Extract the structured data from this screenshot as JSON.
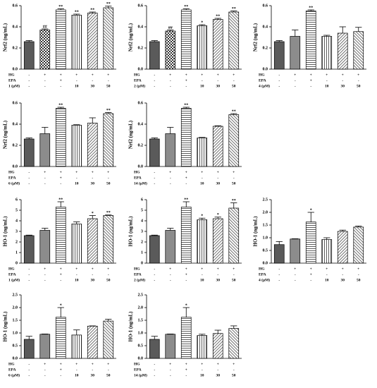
{
  "chart_data": [
    {
      "type": "bar",
      "ylabel": "Nrf2 (ng/mL)",
      "ylim": [
        0,
        0.6
      ],
      "yticks": [
        {
          "value": 0,
          "label": "0.0"
        },
        0.2,
        0.4,
        0.6
      ],
      "values": [
        0.26,
        0.37,
        0.56,
        0.51,
        0.53,
        0.58
      ],
      "errors": [
        0.01,
        0.01,
        0.01,
        0.01,
        0.01,
        0.015
      ],
      "annotations": [
        null,
        "##",
        "**",
        "**",
        "**",
        "**"
      ],
      "fills": [
        "#5a5a5a",
        "check",
        "hlines",
        "vlines",
        "diag",
        "diag2"
      ],
      "rows": [
        {
          "label": "HG",
          "cells": [
            "-",
            "+",
            "+",
            "+",
            "+",
            "+"
          ]
        },
        {
          "label": "EPA",
          "cells": [
            "-",
            "-",
            "+",
            "-",
            "-",
            "-"
          ]
        },
        {
          "label": "1 (μM)",
          "cells": [
            "-",
            "-",
            "-",
            "10",
            "30",
            "50"
          ]
        }
      ]
    },
    {
      "type": "bar",
      "ylabel": "Nrf2 (ng/mL)",
      "ylim": [
        0,
        0.6
      ],
      "yticks": [
        {
          "value": 0,
          "label": "0.0"
        },
        0.2,
        0.4,
        0.6
      ],
      "values": [
        0.26,
        0.36,
        0.56,
        0.41,
        0.47,
        0.54
      ],
      "errors": [
        0.01,
        0.01,
        0.01,
        0.01,
        0.01,
        0.01
      ],
      "annotations": [
        null,
        "##",
        "**",
        "*",
        "**",
        "**"
      ],
      "fills": [
        "#5a5a5a",
        "check",
        "hlines",
        "vlines",
        "diag",
        "diag2"
      ],
      "rows": [
        {
          "label": "HG",
          "cells": [
            "-",
            "+",
            "+",
            "+",
            "+",
            "+"
          ]
        },
        {
          "label": "EPA",
          "cells": [
            "-",
            "-",
            "+",
            "-",
            "-",
            "-"
          ]
        },
        {
          "label": "2 (μM)",
          "cells": [
            "-",
            "-",
            "-",
            "10",
            "30",
            "50"
          ]
        }
      ]
    },
    {
      "type": "bar",
      "ylabel": "Nrf2 (ng/mL)",
      "ylim": [
        0,
        0.6
      ],
      "yticks": [
        {
          "value": 0,
          "label": "0.0"
        },
        0.2,
        0.4,
        0.6
      ],
      "values": [
        0.26,
        0.31,
        0.55,
        0.31,
        0.34,
        0.355
      ],
      "errors": [
        0.01,
        0.06,
        0.01,
        0.01,
        0.06,
        0.04
      ],
      "annotations": [
        null,
        null,
        "**",
        null,
        null,
        null
      ],
      "fills": [
        "#5a5a5a",
        "#8c8c8c",
        "hlines",
        "vlines",
        "diag",
        "diag2"
      ],
      "rows": [
        {
          "label": "HG",
          "cells": [
            "-",
            "+",
            "+",
            "+",
            "+",
            "+"
          ]
        },
        {
          "label": "EPA",
          "cells": [
            "-",
            "-",
            "+",
            "-",
            "-",
            "-"
          ]
        },
        {
          "label": "4 (μM)",
          "cells": [
            "-",
            "-",
            "-",
            "10",
            "30",
            "50"
          ]
        }
      ]
    },
    {
      "type": "bar",
      "ylabel": "Nrf2 (ng/mL)",
      "ylim": [
        0,
        0.6
      ],
      "yticks": [
        {
          "value": 0,
          "label": "0.0"
        },
        0.2,
        0.4,
        0.6
      ],
      "values": [
        0.26,
        0.31,
        0.55,
        0.39,
        0.41,
        0.5
      ],
      "errors": [
        0.01,
        0.06,
        0.01,
        0.005,
        0.05,
        0.01
      ],
      "annotations": [
        null,
        null,
        "**",
        null,
        null,
        "**"
      ],
      "fills": [
        "#5a5a5a",
        "#8c8c8c",
        "hlines",
        "vlines",
        "diag",
        "diag2"
      ],
      "rows": [
        {
          "label": "HG",
          "cells": [
            "-",
            "+",
            "+",
            "+",
            "+",
            "+"
          ]
        },
        {
          "label": "EPA",
          "cells": [
            "-",
            "-",
            "+",
            "-",
            "-",
            "-"
          ]
        },
        {
          "label": "6 (μM)",
          "cells": [
            "-",
            "-",
            "-",
            "10",
            "30",
            "50"
          ]
        }
      ]
    },
    {
      "type": "bar",
      "ylabel": "Nrf2 (ng/mL)",
      "ylim": [
        0,
        0.6
      ],
      "yticks": [
        {
          "value": 0,
          "label": "0.0"
        },
        0.2,
        0.4,
        0.6
      ],
      "values": [
        0.26,
        0.31,
        0.55,
        0.27,
        0.38,
        0.49
      ],
      "errors": [
        0.01,
        0.06,
        0.01,
        0.005,
        0.005,
        0.01
      ],
      "annotations": [
        null,
        null,
        "**",
        null,
        null,
        "**"
      ],
      "fills": [
        "#5a5a5a",
        "#8c8c8c",
        "hlines",
        "vlines",
        "diag",
        "diag2"
      ],
      "rows": [
        {
          "label": "HG",
          "cells": [
            "-",
            "+",
            "+",
            "+",
            "+",
            "+"
          ]
        },
        {
          "label": "EPA",
          "cells": [
            "-",
            "-",
            "+",
            "-",
            "-",
            "-"
          ]
        },
        {
          "label": "14 (μM)",
          "cells": [
            "-",
            "-",
            "-",
            "10",
            "30",
            "50"
          ]
        }
      ]
    },
    {
      "type": "bar",
      "ylabel": "HO-1 (ng/mL)",
      "ylim": [
        0,
        6
      ],
      "yticks": [
        0,
        1,
        2,
        3,
        4,
        5,
        6
      ],
      "values": [
        2.6,
        3.1,
        5.3,
        3.7,
        4.2,
        4.5
      ],
      "errors": [
        0.05,
        0.2,
        0.5,
        0.2,
        0.3,
        0.05
      ],
      "annotations": [
        null,
        null,
        "**",
        null,
        "*",
        "**"
      ],
      "fills": [
        "#5a5a5a",
        "#8c8c8c",
        "hlines",
        "vlines",
        "diag",
        "diag2"
      ],
      "rows": [
        {
          "label": "HG",
          "cells": [
            "-",
            "+",
            "+",
            "+",
            "+",
            "+"
          ]
        },
        {
          "label": "EPA",
          "cells": [
            "-",
            "-",
            "+",
            "-",
            "-",
            "-"
          ]
        },
        {
          "label": "1 (μM)",
          "cells": [
            "-",
            "-",
            "-",
            "10",
            "30",
            "50"
          ]
        }
      ]
    },
    {
      "type": "bar",
      "ylabel": "HO-1 (ng/mL)",
      "ylim": [
        0,
        6
      ],
      "yticks": [
        0,
        1,
        2,
        3,
        4,
        5,
        6
      ],
      "values": [
        2.6,
        3.1,
        5.3,
        4.1,
        4.2,
        5.2
      ],
      "errors": [
        0.05,
        0.2,
        0.5,
        0.15,
        0.15,
        0.5
      ],
      "annotations": [
        null,
        null,
        "**",
        "*",
        "*",
        "**"
      ],
      "fills": [
        "#5a5a5a",
        "#8c8c8c",
        "hlines",
        "vlines",
        "diag",
        "diag2"
      ],
      "rows": [
        {
          "label": "HG",
          "cells": [
            "-",
            "+",
            "+",
            "+",
            "+",
            "+"
          ]
        },
        {
          "label": "EPA",
          "cells": [
            "-",
            "-",
            "+",
            "-",
            "-",
            "-"
          ]
        },
        {
          "label": "2 (μM)",
          "cells": [
            "-",
            "-",
            "-",
            "10",
            "30",
            "50"
          ]
        }
      ]
    },
    {
      "type": "bar",
      "ylabel": "HO-1 (ng/mL)",
      "ylim": [
        0,
        2.5
      ],
      "yticks": [
        {
          "value": 0,
          "label": "0.0"
        },
        0.5,
        {
          "value": 1,
          "label": "1.0"
        },
        1.5,
        {
          "value": 2,
          "label": "2.0"
        },
        2.5
      ],
      "values": [
        0.73,
        0.95,
        1.62,
        0.93,
        1.25,
        1.42
      ],
      "errors": [
        0.12,
        0.01,
        0.38,
        0.07,
        0.05,
        0.04
      ],
      "annotations": [
        null,
        null,
        "*",
        null,
        null,
        null
      ],
      "fills": [
        "#5a5a5a",
        "#8c8c8c",
        "hlines",
        "vlines",
        "diag",
        "diag2"
      ],
      "rows": [
        {
          "label": "HG",
          "cells": [
            "-",
            "+",
            "+",
            "+",
            "+",
            "+"
          ]
        },
        {
          "label": "EPA",
          "cells": [
            "-",
            "-",
            "+",
            "-",
            "-",
            "-"
          ]
        },
        {
          "label": "4 (μM)",
          "cells": [
            "-",
            "-",
            "-",
            "10",
            "30",
            "50"
          ]
        }
      ]
    },
    {
      "type": "bar",
      "ylabel": "HO-1 (ng/mL)",
      "ylim": [
        0,
        2.5
      ],
      "yticks": [
        {
          "value": 0,
          "label": "0.0"
        },
        0.5,
        {
          "value": 1,
          "label": "1.0"
        },
        1.5,
        {
          "value": 2,
          "label": "2.0"
        },
        2.5
      ],
      "values": [
        0.75,
        0.95,
        1.62,
        0.92,
        1.27,
        1.47
      ],
      "errors": [
        0.12,
        0.01,
        0.38,
        0.2,
        0.01,
        0.07
      ],
      "annotations": [
        null,
        null,
        "*",
        null,
        null,
        null
      ],
      "fills": [
        "#5a5a5a",
        "#8c8c8c",
        "hlines",
        "vlines",
        "diag",
        "diag2"
      ],
      "rows": [
        {
          "label": "HG",
          "cells": [
            "-",
            "+",
            "+",
            "+",
            "+",
            "+"
          ]
        },
        {
          "label": "EPA",
          "cells": [
            "-",
            "-",
            "+",
            "-",
            "-",
            "-"
          ]
        },
        {
          "label": "6 (μM)",
          "cells": [
            "-",
            "-",
            "-",
            "10",
            "30",
            "50"
          ]
        }
      ]
    },
    {
      "type": "bar",
      "ylabel": "HO-1 (ng/mL)",
      "ylim": [
        0,
        2.5
      ],
      "yticks": [
        {
          "value": 0,
          "label": "0.0"
        },
        0.5,
        {
          "value": 1,
          "label": "1.0"
        },
        1.5,
        {
          "value": 2,
          "label": "2.0"
        },
        2.5
      ],
      "values": [
        0.75,
        0.95,
        1.62,
        0.9,
        0.98,
        1.18
      ],
      "errors": [
        0.12,
        0.01,
        0.38,
        0.05,
        0.13,
        0.1
      ],
      "annotations": [
        null,
        null,
        "*",
        null,
        null,
        null
      ],
      "fills": [
        "#5a5a5a",
        "#8c8c8c",
        "hlines",
        "vlines",
        "diag",
        "diag2"
      ],
      "rows": [
        {
          "label": "HG",
          "cells": [
            "-",
            "+",
            "+",
            "+",
            "+",
            "+"
          ]
        },
        {
          "label": "EPA",
          "cells": [
            "-",
            "-",
            "+",
            "-",
            "-",
            "-"
          ]
        },
        {
          "label": "14 (μM)",
          "cells": [
            "-",
            "-",
            "-",
            "10",
            "30",
            "50"
          ]
        }
      ]
    }
  ]
}
